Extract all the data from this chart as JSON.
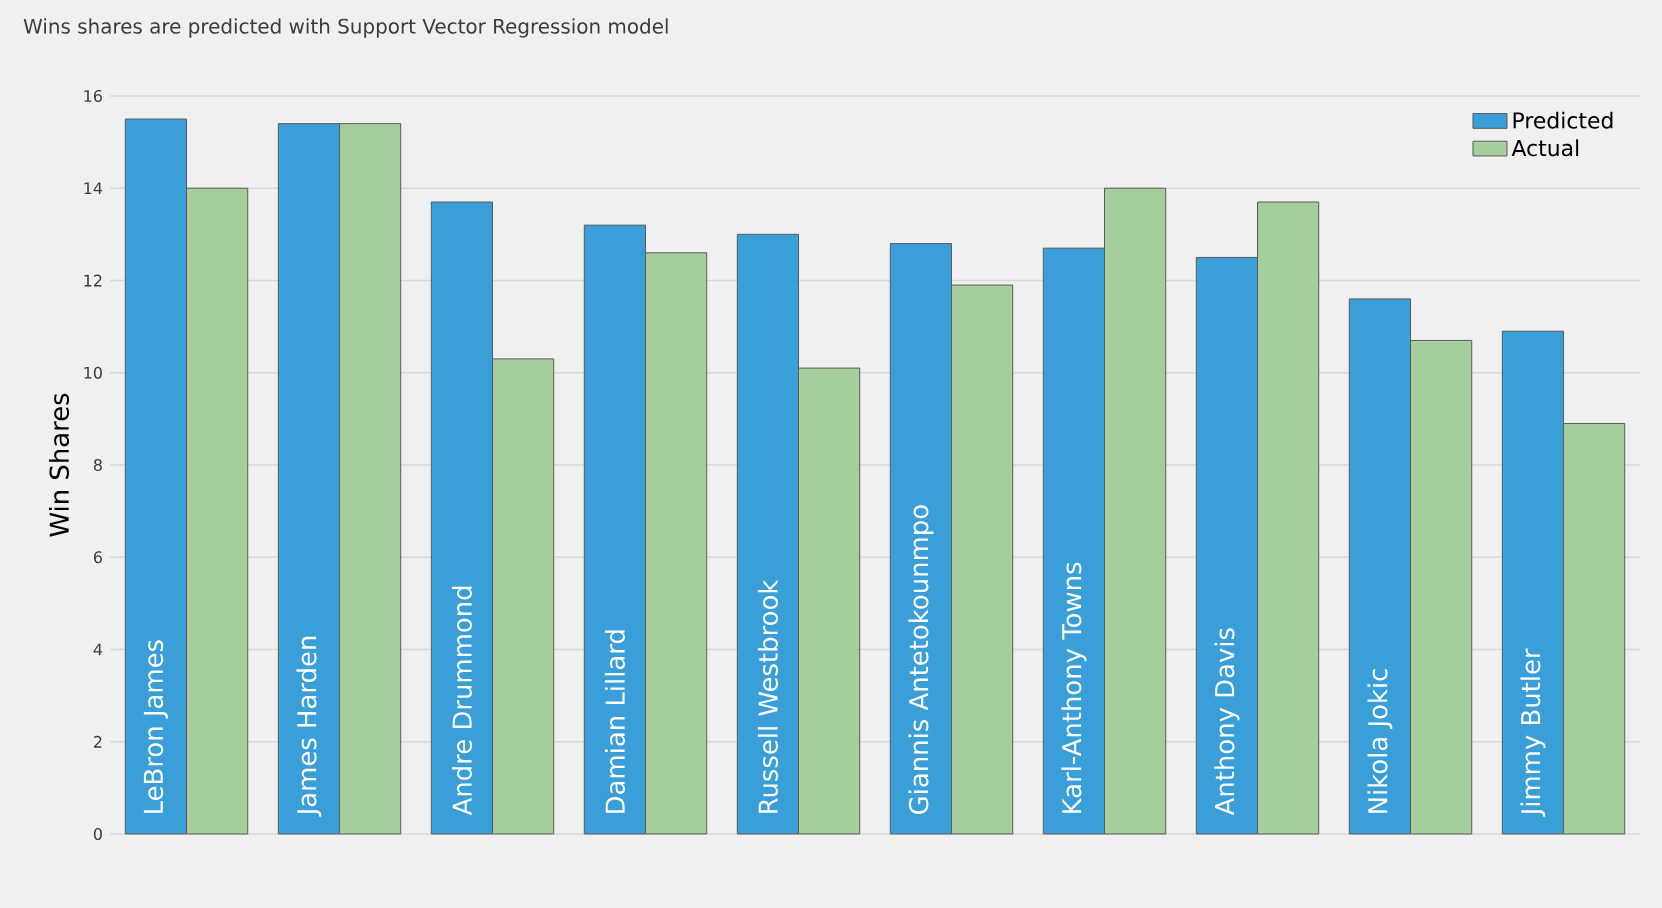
{
  "chart_data": {
    "type": "bar",
    "title": "Wins shares are predicted with Support Vector Regression model",
    "ylabel": "Win Shares",
    "categories": [
      "LeBron James",
      "James Harden",
      "Andre Drummond",
      "Damian Lillard",
      "Russell Westbrook",
      "Giannis Antetokounmpo",
      "Karl-Anthony Towns",
      "Anthony Davis",
      "Nikola Jokic",
      "Jimmy Butler"
    ],
    "series": [
      {
        "name": "Predicted",
        "color": "#3a9fd9",
        "values": [
          15.5,
          15.4,
          13.7,
          13.2,
          13.0,
          12.8,
          12.7,
          12.5,
          11.6,
          10.9
        ]
      },
      {
        "name": "Actual",
        "color": "#a6cd9c",
        "values": [
          14.0,
          15.4,
          10.3,
          12.6,
          10.1,
          11.9,
          14.0,
          13.7,
          10.7,
          8.9
        ]
      }
    ],
    "ylim": [
      0,
      16
    ],
    "yticks": [
      0,
      2,
      4,
      6,
      8,
      10,
      12,
      14,
      16
    ],
    "grid": "y",
    "legend": "top right"
  }
}
